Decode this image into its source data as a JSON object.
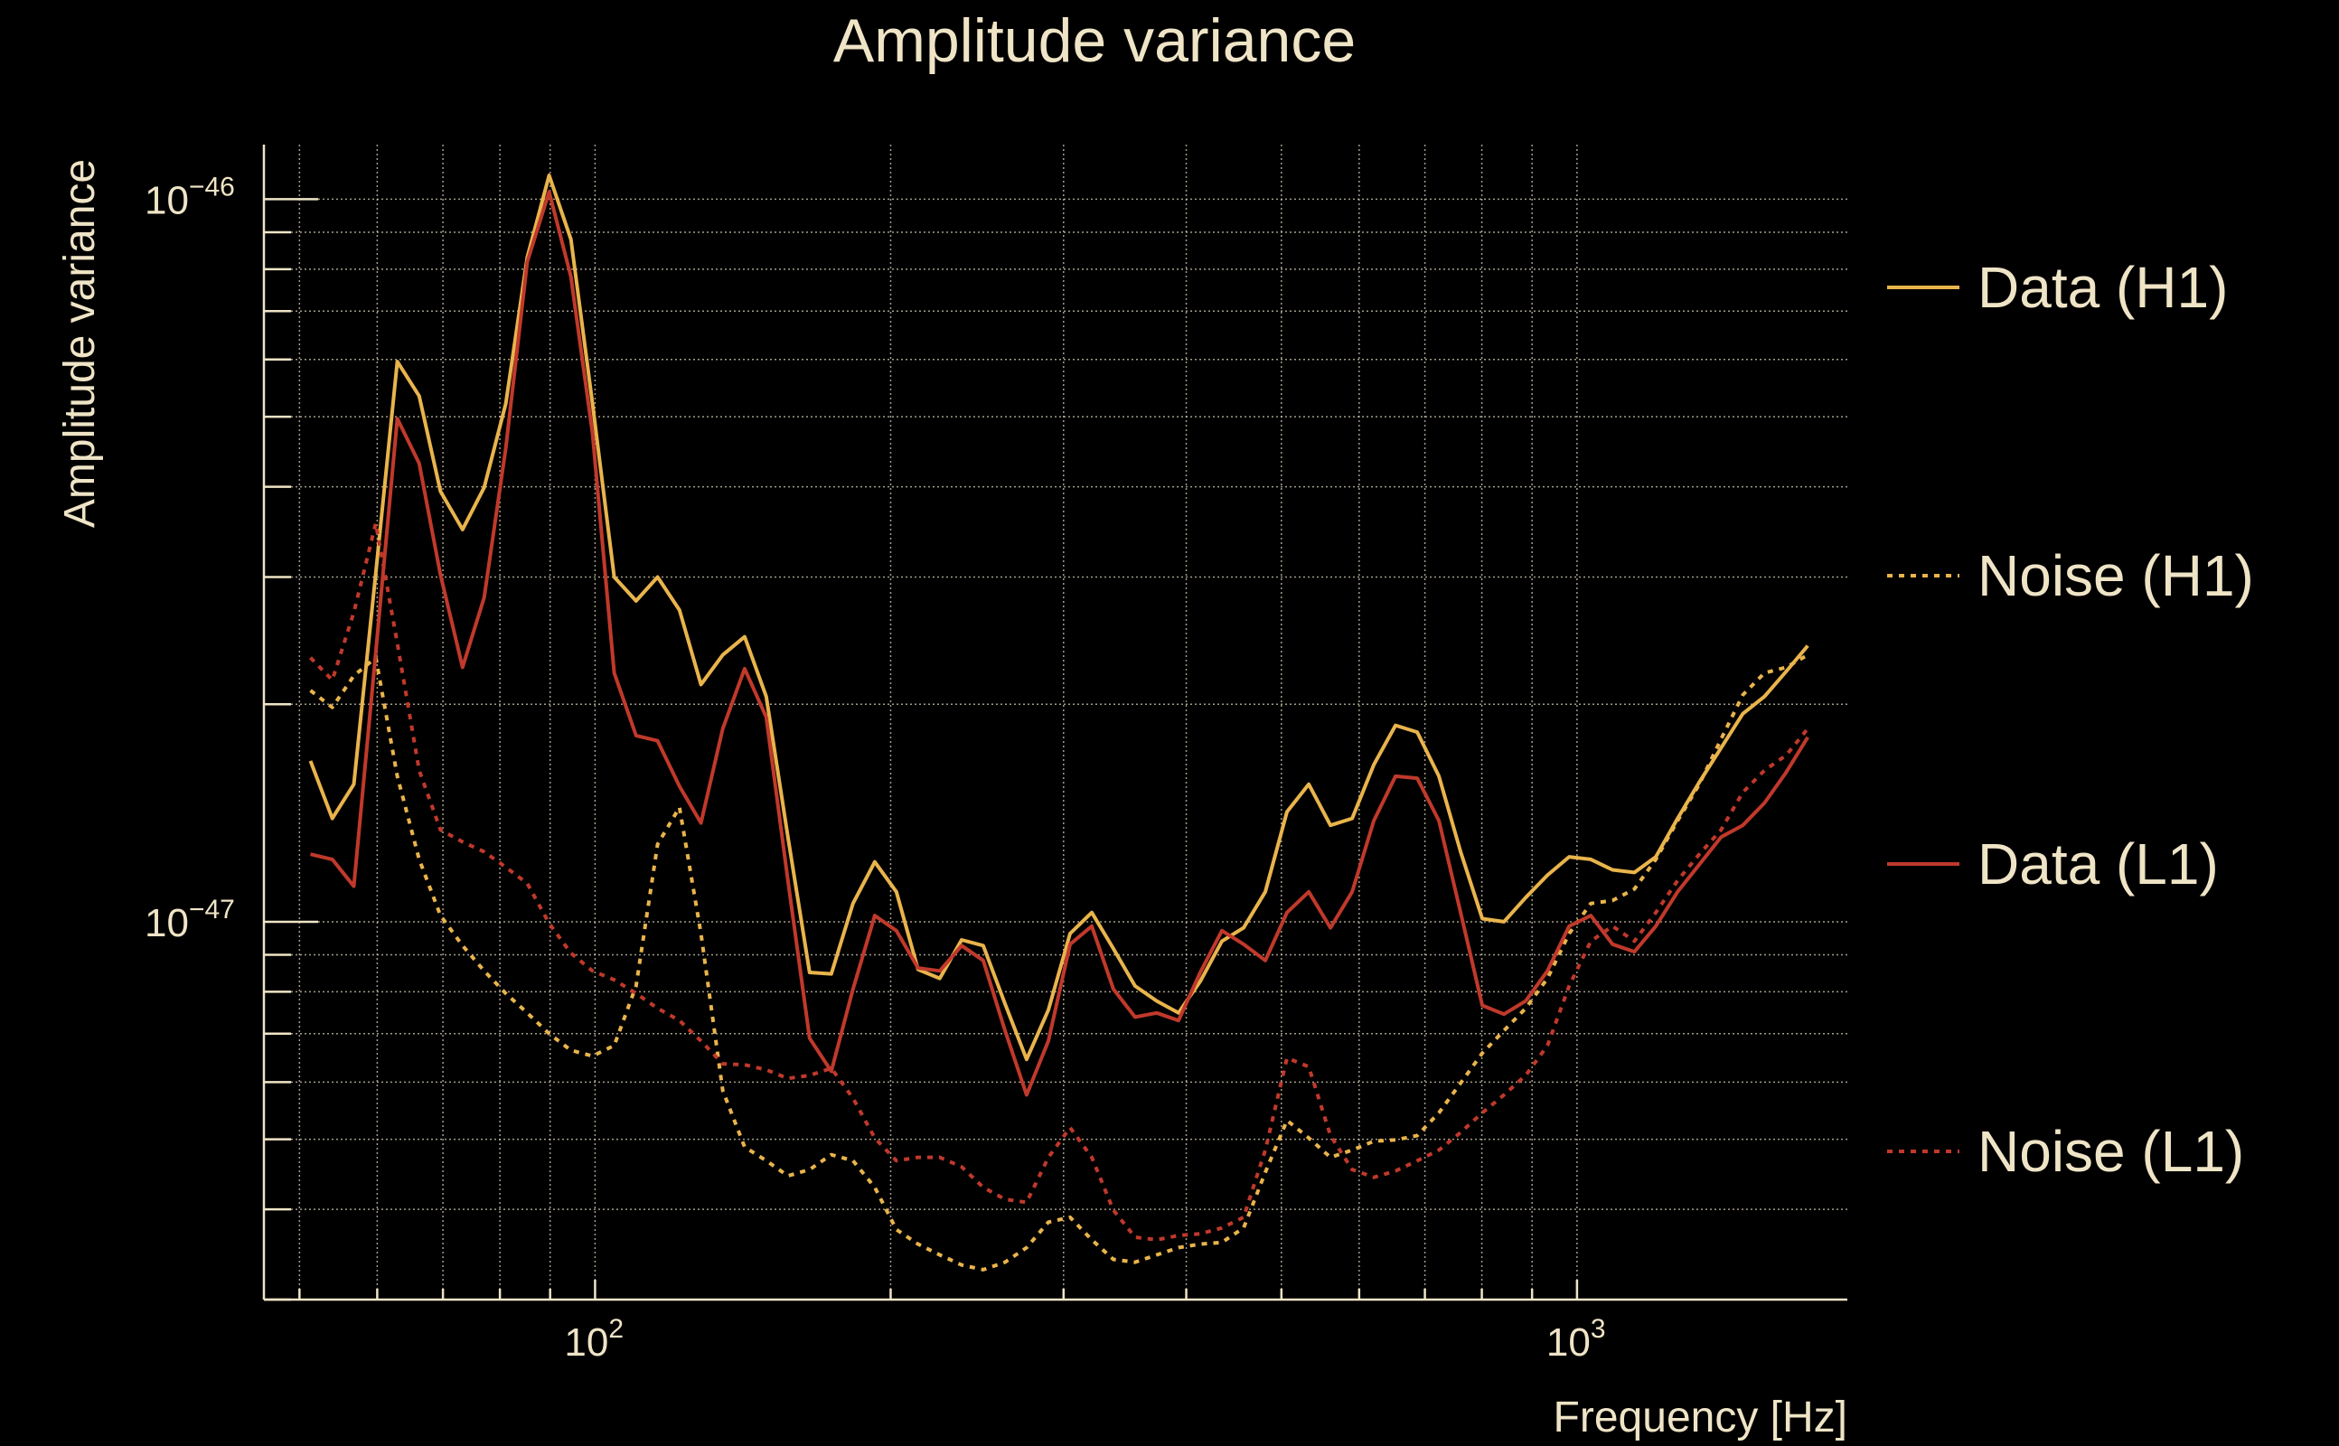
{
  "chart_data": {
    "type": "line",
    "title": "Amplitude variance",
    "xlabel": "Frequency [Hz]",
    "ylabel": "Amplitude variance",
    "xscale": "log",
    "yscale": "log",
    "xlim": [
      46,
      1885
    ],
    "ylim": [
      3e-48,
      1.19e-46
    ],
    "grid": true,
    "legend_position": "right",
    "x_ticks": [
      {
        "value": 100,
        "base": "10",
        "exp": "2"
      },
      {
        "value": 1000,
        "base": "10",
        "exp": "3"
      }
    ],
    "y_ticks": [
      {
        "value": 1e-46,
        "base": "10",
        "exp": "−46"
      },
      {
        "value": 1e-47,
        "base": "10",
        "exp": "−47"
      }
    ],
    "x": [
      51.3,
      54.0,
      56.8,
      59.8,
      62.9,
      66.2,
      69.6,
      73.3,
      77.1,
      81.1,
      85.3,
      89.8,
      94.5,
      99.4,
      104.6,
      110.1,
      115.8,
      121.9,
      128.2,
      134.9,
      142.0,
      149.4,
      157.2,
      165.4,
      174.0,
      183.1,
      192.7,
      202.7,
      213.3,
      224.4,
      236.2,
      248.5,
      261.5,
      275.1,
      289.5,
      304.6,
      320.5,
      337.2,
      354.8,
      373.3,
      392.8,
      413.3,
      434.9,
      457.6,
      481.5,
      506.6,
      533.1,
      560.9,
      590.2,
      621.0,
      653.4,
      687.5,
      723.4,
      761.2,
      800.9,
      842.7,
      886.7,
      933.0,
      981.7,
      1033,
      1087,
      1144,
      1203,
      1266,
      1332,
      1402,
      1475,
      1552,
      1633,
      1718
    ],
    "series": [
      {
        "name": "Data (H1)",
        "color": "#e9b44c",
        "style": "solid",
        "values": [
          1.67e-47,
          1.39e-47,
          1.55e-47,
          3.04e-47,
          5.96e-47,
          5.34e-47,
          3.94e-47,
          3.49e-47,
          3.99e-47,
          5.21e-47,
          8.31e-47,
          1.079e-46,
          8.8e-47,
          5.21e-47,
          3e-47,
          2.78e-47,
          3e-47,
          2.7e-47,
          2.13e-47,
          2.34e-47,
          2.48e-47,
          2.05e-47,
          1.31e-47,
          8.51e-48,
          8.47e-48,
          1.06e-47,
          1.21e-47,
          1.1e-47,
          8.59e-48,
          8.35e-48,
          9.44e-48,
          9.27e-48,
          7.7e-48,
          6.45e-48,
          7.55e-48,
          9.63e-48,
          1.03e-47,
          9.18e-48,
          8.15e-48,
          7.77e-48,
          7.48e-48,
          8.27e-48,
          9.4e-48,
          9.81e-48,
          1.1e-47,
          1.42e-47,
          1.55e-47,
          1.36e-47,
          1.39e-47,
          1.65e-47,
          1.87e-47,
          1.83e-47,
          1.59e-47,
          1.25e-47,
          1.01e-47,
          1e-47,
          1.08e-47,
          1.16e-47,
          1.23e-47,
          1.22e-47,
          1.18e-47,
          1.17e-47,
          1.23e-47,
          1.39e-47,
          1.56e-47,
          1.74e-47,
          1.94e-47,
          2.05e-47,
          2.22e-47,
          2.41e-47
        ]
      },
      {
        "name": "Noise (H1)",
        "color": "#e9b44c",
        "style": "dotted",
        "values": [
          2.09e-47,
          1.98e-47,
          2.19e-47,
          2.32e-47,
          1.59e-47,
          1.22e-47,
          1.02e-47,
          9.27e-48,
          8.55e-48,
          7.96e-48,
          7.48e-48,
          7e-48,
          6.64e-48,
          6.52e-48,
          6.74e-48,
          8.15e-48,
          1.28e-47,
          1.44e-47,
          9.63e-48,
          5.84e-48,
          4.88e-48,
          4.67e-48,
          4.45e-48,
          4.54e-48,
          4.76e-48,
          4.67e-48,
          4.29e-48,
          3.75e-48,
          3.58e-48,
          3.46e-48,
          3.35e-48,
          3.3e-48,
          3.38e-48,
          3.54e-48,
          3.84e-48,
          3.9e-48,
          3.63e-48,
          3.41e-48,
          3.38e-48,
          3.46e-48,
          3.54e-48,
          3.58e-48,
          3.6e-48,
          3.77e-48,
          4.5e-48,
          5.31e-48,
          5.02e-48,
          4.72e-48,
          4.83e-48,
          4.97e-48,
          4.99e-48,
          5.06e-48,
          5.44e-48,
          5.98e-48,
          6.58e-48,
          7.07e-48,
          7.59e-48,
          8.35e-48,
          9.63e-48,
          1.06e-47,
          1.07e-47,
          1.11e-47,
          1.22e-47,
          1.38e-47,
          1.55e-47,
          1.79e-47,
          2.06e-47,
          2.21e-47,
          2.25e-47,
          2.34e-47
        ]
      },
      {
        "name": "Data (L1)",
        "color": "#c0392b",
        "style": "solid",
        "values": [
          1.24e-47,
          1.22e-47,
          1.12e-47,
          2.36e-47,
          4.97e-47,
          4.31e-47,
          3.02e-47,
          2.25e-47,
          2.81e-47,
          4.52e-47,
          8.19e-47,
          1.024e-46,
          7.81e-47,
          4.74e-47,
          2.21e-47,
          1.81e-47,
          1.78e-47,
          1.54e-47,
          1.37e-47,
          1.85e-47,
          2.24e-47,
          1.92e-47,
          1.14e-47,
          6.9e-48,
          6.21e-48,
          8.07e-48,
          1.02e-47,
          9.72e-48,
          8.63e-48,
          8.55e-48,
          9.27e-48,
          8.84e-48,
          7.07e-48,
          5.76e-48,
          6.84e-48,
          9.31e-48,
          9.86e-48,
          8.07e-48,
          7.38e-48,
          7.48e-48,
          7.3e-48,
          8.51e-48,
          9.72e-48,
          9.31e-48,
          8.84e-48,
          1.03e-47,
          1.1e-47,
          9.81e-48,
          1.1e-47,
          1.38e-47,
          1.59e-47,
          1.58e-47,
          1.38e-47,
          1.03e-47,
          7.66e-48,
          7.45e-48,
          7.77e-48,
          8.55e-48,
          9.86e-48,
          1.02e-47,
          9.31e-48,
          9.09e-48,
          9.86e-48,
          1.1e-47,
          1.2e-47,
          1.31e-47,
          1.36e-47,
          1.46e-47,
          1.61e-47,
          1.8e-47
        ]
      },
      {
        "name": "Noise (L1)",
        "color": "#c0392b",
        "style": "dotted",
        "values": [
          2.32e-47,
          2.16e-47,
          2.68e-47,
          3.56e-47,
          2.43e-47,
          1.62e-47,
          1.34e-47,
          1.29e-47,
          1.25e-47,
          1.19e-47,
          1.13e-47,
          9.95e-48,
          9.05e-48,
          8.55e-48,
          8.31e-48,
          7.96e-48,
          7.59e-48,
          7.3e-48,
          6.84e-48,
          6.36e-48,
          6.34e-48,
          6.24e-48,
          6.07e-48,
          6.13e-48,
          6.27e-48,
          5.7e-48,
          5.02e-48,
          4.67e-48,
          4.72e-48,
          4.72e-48,
          4.58e-48,
          4.29e-48,
          4.13e-48,
          4.09e-48,
          4.72e-48,
          5.19e-48,
          4.72e-48,
          3.99e-48,
          3.66e-48,
          3.63e-48,
          3.68e-48,
          3.7e-48,
          3.77e-48,
          3.9e-48,
          4.83e-48,
          6.48e-48,
          6.3e-48,
          5.06e-48,
          4.54e-48,
          4.43e-48,
          4.52e-48,
          4.67e-48,
          4.83e-48,
          5.11e-48,
          5.44e-48,
          5.76e-48,
          6.13e-48,
          6.74e-48,
          8.15e-48,
          9.4e-48,
          9.86e-48,
          9.4e-48,
          1.03e-47,
          1.14e-47,
          1.24e-47,
          1.34e-47,
          1.51e-47,
          1.62e-47,
          1.7e-47,
          1.85e-47
        ]
      }
    ]
  }
}
